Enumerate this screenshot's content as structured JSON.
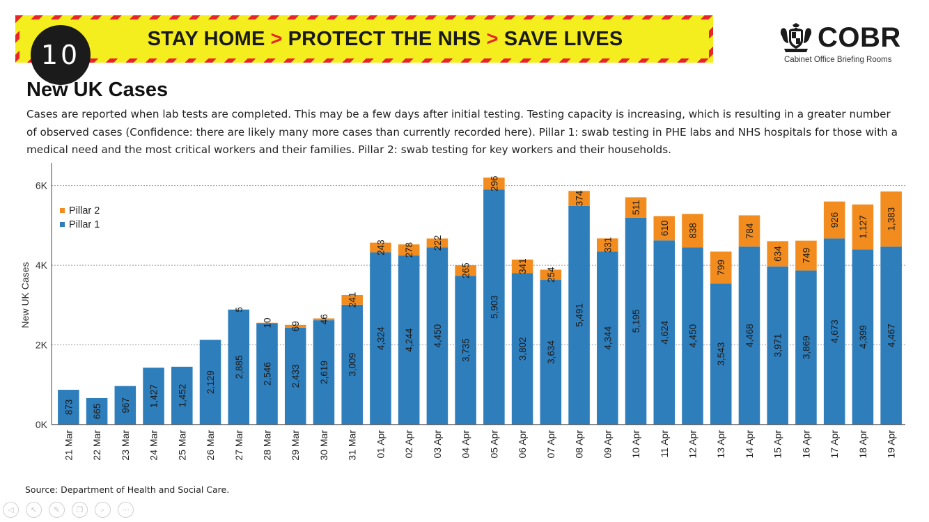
{
  "banner": {
    "slogan_parts": [
      "STAY HOME",
      "PROTECT THE NHS",
      "SAVE LIVES"
    ],
    "separator": ">",
    "colors": {
      "yellow": "#f5ee1f",
      "red": "#e8232a"
    }
  },
  "badge": {
    "number": "10"
  },
  "logo": {
    "title": "COBR",
    "subtitle": "Cabinet Office Briefing Rooms",
    "icon": "royal-crest-icon"
  },
  "header": {
    "title": "New UK Cases",
    "description": "Cases are reported when lab tests are completed. This may be a few days after initial testing. Testing capacity is increasing, which is resulting in a greater number of observed cases (Confidence: there are likely many more cases than currently recorded here). Pillar 1: swab testing in PHE labs and NHS hospitals for those with a medical need and the most critical workers and their families. Pillar 2: swab testing for key workers and their households."
  },
  "chart_data": {
    "type": "bar",
    "stacked": true,
    "categories": [
      "21 Mar",
      "22 Mar",
      "23 Mar",
      "24 Mar",
      "25 Mar",
      "26 Mar",
      "27 Mar",
      "28 Mar",
      "29 Mar",
      "30 Mar",
      "31 Mar",
      "01 Apr",
      "02 Apr",
      "03 Apr",
      "04 Apr",
      "05 Apr",
      "06 Apr",
      "07 Apr",
      "08 Apr",
      "09 Apr",
      "10 Apr",
      "11 Apr",
      "12 Apr",
      "13 Apr",
      "14 Apr",
      "15 Apr",
      "16 Apr",
      "17 Apr",
      "18 Apr",
      "19 Apr"
    ],
    "series": [
      {
        "name": "Pillar 1",
        "color": "#2e7ebc",
        "values": [
          873,
          665,
          967,
          1427,
          1452,
          2129,
          2885,
          2546,
          2433,
          2619,
          3009,
          4324,
          4244,
          4450,
          3735,
          5903,
          3802,
          3634,
          5491,
          4344,
          5195,
          4624,
          4450,
          3543,
          4468,
          3971,
          3869,
          4673,
          4399,
          4467
        ]
      },
      {
        "name": "Pillar 2",
        "color": "#f28c1e",
        "values": [
          null,
          null,
          null,
          null,
          null,
          null,
          5,
          10,
          69,
          46,
          241,
          243,
          278,
          222,
          265,
          296,
          341,
          254,
          374,
          331,
          511,
          610,
          838,
          799,
          784,
          634,
          749,
          926,
          1127,
          1383
        ]
      }
    ],
    "ylabel": "New UK Cases",
    "xlabel": "",
    "ylim": [
      0,
      6500
    ],
    "yticks": [
      0,
      2000,
      4000,
      6000
    ],
    "ytick_labels": [
      "0K",
      "2K",
      "4K",
      "6K"
    ],
    "grid": true,
    "legend": "top-left",
    "legend_order": [
      "Pillar 2",
      "Pillar 1"
    ]
  },
  "footer": {
    "source": "Source: Department of Health and Social Care."
  },
  "controls": [
    {
      "name": "prev-icon",
      "glyph": "◁"
    },
    {
      "name": "pointer-icon",
      "glyph": "↖"
    },
    {
      "name": "pen-icon",
      "glyph": "✎"
    },
    {
      "name": "copy-icon",
      "glyph": "❐"
    },
    {
      "name": "zoom-icon",
      "glyph": "⌕"
    },
    {
      "name": "more-icon",
      "glyph": "⋯"
    }
  ]
}
